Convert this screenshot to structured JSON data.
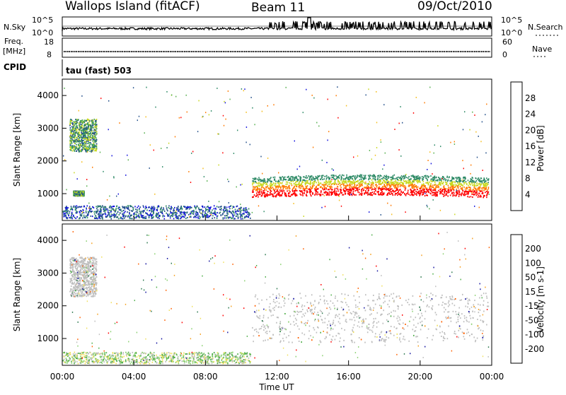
{
  "chart_data": [
    {
      "type": "line",
      "title": "Wallops Island (fitACF)",
      "beam": "Beam 11",
      "date": "09/Oct/2010",
      "panel": "noise",
      "left_label": "N.Sky",
      "right_label": "N.Search",
      "left_ticks": [
        "10^5",
        "10^0"
      ],
      "right_ticks": [
        "10^5",
        "10^0"
      ],
      "note": "Noise level trace, mostly near 10^0–10^1 with spikes after 12:00"
    },
    {
      "type": "line",
      "panel": "frequency",
      "left_label_line1": "Freq.",
      "left_label_line2": "[MHz]",
      "left_ticks": [
        "18",
        "8"
      ],
      "right_label": "Nave",
      "right_ticks": [
        "60",
        "0"
      ],
      "freq_mhz": 10.5
    },
    {
      "type": "heatmap",
      "panel": "cpid",
      "label": "CPID",
      "text": "tau (fast) 503"
    },
    {
      "type": "heatmap",
      "panel": "power",
      "ylabel": "Slant Range [km]",
      "yticks": [
        "4000",
        "3000",
        "2000",
        "1000"
      ],
      "ylim": [
        180,
        4500
      ],
      "xlim_hours": [
        0,
        24
      ],
      "colorbar_label": "Power [dB]",
      "colorbar_ticks": [
        "28",
        "24",
        "20",
        "16",
        "12",
        "8",
        "4"
      ],
      "colorbar_colors": [
        "#ff0000",
        "#ff7a00",
        "#f5be1e",
        "#c8d81e",
        "#58b050",
        "#2e8a66",
        "#24508a",
        "#1010dd"
      ],
      "regions": [
        {
          "t0": 10.6,
          "t1": 23.8,
          "r0": 900,
          "r1": 1500,
          "cls": "strong"
        },
        {
          "t0": 0.4,
          "t1": 1.9,
          "r0": 2300,
          "r1": 3300,
          "cls": "medium"
        },
        {
          "t0": 0.6,
          "t1": 1.2,
          "r0": 950,
          "r1": 1100,
          "cls": "medium"
        },
        {
          "t0": 0,
          "t1": 10.5,
          "r0": 250,
          "r1": 650,
          "cls": "weak"
        }
      ]
    },
    {
      "type": "heatmap",
      "panel": "velocity",
      "ylabel": "Slant Range [km]",
      "yticks": [
        "4000",
        "3000",
        "2000",
        "1000"
      ],
      "ylim": [
        180,
        4500
      ],
      "xlim_hours": [
        0,
        24
      ],
      "xticks": [
        "00:00",
        "04:00",
        "08:00",
        "12:00",
        "16:00",
        "20:00",
        "00:00"
      ],
      "xlabel": "Time UT",
      "colorbar_label": "Velocity [m s-1]",
      "colorbar_ticks": [
        "200",
        "100",
        "50",
        "15",
        "-15",
        "-50",
        "-100",
        "-200"
      ],
      "colorbar_colors": [
        "#1414a0",
        "#2e7a50",
        "#4fae4a",
        "#8ad070",
        "#bebebe",
        "#f0e060",
        "#f5a020",
        "#ff6000",
        "#ff0000"
      ],
      "regions": [
        {
          "t0": 10.6,
          "t1": 23.8,
          "r0": 900,
          "r1": 2400,
          "cls": "ground"
        },
        {
          "t0": 0.4,
          "t1": 1.9,
          "r0": 2300,
          "r1": 3500,
          "cls": "ground"
        },
        {
          "t0": 0,
          "t1": 10.5,
          "r0": 250,
          "r1": 600,
          "cls": "slow"
        }
      ]
    }
  ]
}
